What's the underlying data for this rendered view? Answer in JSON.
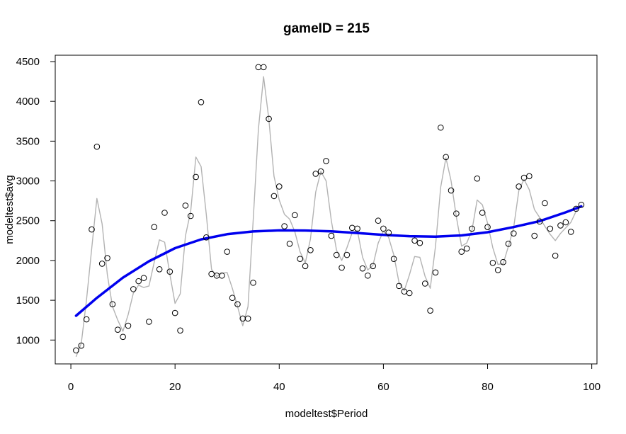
{
  "chart_data": {
    "type": "scatter",
    "title": "gameID = 215",
    "xlabel": "modeltest$Period",
    "ylabel": "modeltest$avg",
    "xlim": [
      -3,
      101
    ],
    "ylim": [
      700,
      4580
    ],
    "xticks": [
      0,
      20,
      40,
      60,
      80,
      100
    ],
    "yticks": [
      1000,
      1500,
      2000,
      2500,
      3000,
      3500,
      4000,
      4500
    ],
    "grid": false,
    "legend": "none",
    "colors": {
      "points": "#000000",
      "smooth_line": "#b3b3b3",
      "fit_line": "#0000ee"
    },
    "series": [
      {
        "type": "scatter",
        "x": [
          1,
          2,
          3,
          4,
          5,
          6,
          7,
          8,
          9,
          10,
          11,
          12,
          13,
          14,
          15,
          16,
          17,
          18,
          19,
          20,
          21,
          22,
          23,
          24,
          25,
          26,
          27,
          28,
          29,
          30,
          31,
          32,
          33,
          34,
          35,
          36,
          37,
          38,
          39,
          40,
          41,
          42,
          43,
          44,
          45,
          46,
          47,
          48,
          49,
          50,
          51,
          52,
          53,
          54,
          55,
          56,
          57,
          58,
          59,
          60,
          61,
          62,
          63,
          64,
          65,
          66,
          67,
          68,
          69,
          70,
          71,
          72,
          73,
          74,
          75,
          76,
          77,
          78,
          79,
          80,
          81,
          82,
          83,
          84,
          85,
          86,
          87,
          88,
          89,
          90,
          91,
          92,
          93,
          94,
          95,
          96,
          97,
          98
        ],
        "y": [
          870,
          930,
          1260,
          2390,
          3430,
          1960,
          2030,
          1450,
          1130,
          1040,
          1180,
          1640,
          1740,
          1780,
          1230,
          2420,
          1890,
          2600,
          1860,
          1340,
          1120,
          2690,
          2560,
          3050,
          3990,
          2290,
          1830,
          1810,
          1810,
          2110,
          1530,
          1450,
          1270,
          1270,
          1720,
          4430,
          4430,
          3780,
          2810,
          2930,
          2430,
          2210,
          2570,
          2020,
          1930,
          2130,
          3090,
          3120,
          3250,
          2310,
          2070,
          1910,
          2070,
          2410,
          2400,
          1900,
          1810,
          1930,
          2500,
          2400,
          2350,
          2020,
          1680,
          1610,
          1590,
          2250,
          2220,
          1710,
          1370,
          1850,
          3670,
          3300,
          2880,
          2590,
          2110,
          2150,
          2400,
          3030,
          2600,
          2420,
          1970,
          1880,
          1980,
          2210,
          2340,
          2930,
          3040,
          3060,
          2310,
          2490,
          2720,
          2400,
          2060,
          2440,
          2480,
          2360,
          2650,
          2700
        ]
      },
      {
        "type": "line",
        "x": [
          1,
          2,
          3,
          4,
          5,
          6,
          7,
          8,
          9,
          10,
          11,
          12,
          13,
          14,
          15,
          16,
          17,
          18,
          19,
          20,
          21,
          22,
          23,
          24,
          25,
          26,
          27,
          28,
          29,
          30,
          31,
          32,
          33,
          34,
          35,
          36,
          37,
          38,
          39,
          40,
          41,
          42,
          43,
          44,
          45,
          46,
          47,
          48,
          49,
          50,
          51,
          52,
          53,
          54,
          55,
          56,
          57,
          58,
          59,
          60,
          61,
          62,
          63,
          64,
          65,
          66,
          67,
          68,
          69,
          70,
          71,
          72,
          73,
          74,
          75,
          76,
          77,
          78,
          79,
          80,
          81,
          82,
          83,
          84,
          85,
          86,
          87,
          88,
          89,
          90,
          91,
          92,
          93,
          94,
          95,
          96,
          97,
          98
        ],
        "y": [
          790,
          960,
          1500,
          2150,
          2780,
          2460,
          1820,
          1420,
          1250,
          1110,
          1320,
          1590,
          1690,
          1660,
          1680,
          1980,
          2260,
          2230,
          1830,
          1460,
          1580,
          2310,
          2620,
          3300,
          3180,
          2580,
          1890,
          1800,
          1840,
          1850,
          1650,
          1420,
          1180,
          1420,
          2500,
          3650,
          4310,
          3780,
          3060,
          2760,
          2580,
          2520,
          2360,
          2110,
          1970,
          2270,
          2860,
          3120,
          3000,
          2500,
          2130,
          2000,
          2160,
          2350,
          2380,
          2040,
          1880,
          1940,
          2220,
          2370,
          2290,
          2070,
          1720,
          1620,
          1820,
          2050,
          2040,
          1800,
          1650,
          2180,
          2920,
          3290,
          3000,
          2550,
          2180,
          2220,
          2380,
          2760,
          2700,
          2470,
          2160,
          1950,
          1960,
          2180,
          2410,
          2880,
          3020,
          2890,
          2640,
          2540,
          2430,
          2330,
          2250,
          2340,
          2410,
          2480,
          2620,
          2700
        ]
      },
      {
        "type": "line",
        "x": [
          1,
          5,
          10,
          15,
          20,
          25,
          30,
          35,
          40,
          45,
          50,
          55,
          60,
          65,
          70,
          75,
          80,
          85,
          90,
          95,
          98
        ],
        "y": [
          1305,
          1530,
          1785,
          1990,
          2155,
          2265,
          2330,
          2365,
          2378,
          2377,
          2366,
          2345,
          2322,
          2305,
          2300,
          2315,
          2355,
          2420,
          2495,
          2605,
          2680
        ]
      }
    ]
  }
}
